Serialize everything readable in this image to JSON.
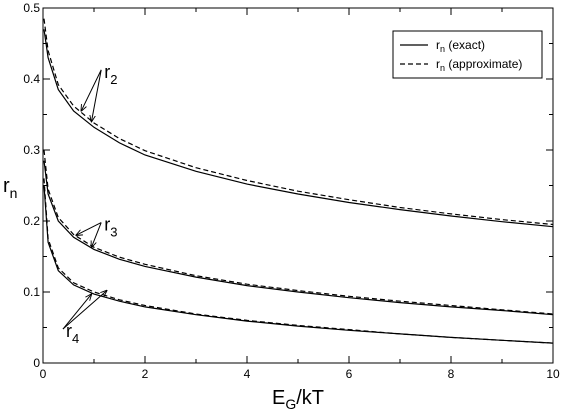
{
  "chart_data": {
    "type": "line",
    "title": "",
    "xlabel": {
      "main": "E",
      "sub": "G",
      "rest": "/kT"
    },
    "ylabel": {
      "main": "r",
      "sub": "n"
    },
    "xlim": [
      0,
      10
    ],
    "ylim": [
      0,
      0.5
    ],
    "x_ticks": [
      "0",
      "2",
      "4",
      "6",
      "8",
      "10"
    ],
    "y_ticks": [
      "0",
      "0.1",
      "0.2",
      "0.3",
      "0.4",
      "0.5"
    ],
    "legend": {
      "placement": "top-right",
      "entries": [
        {
          "main": "r",
          "sub": "n",
          "rest": " (exact)",
          "style": "solid"
        },
        {
          "main": "r",
          "sub": "n",
          "rest": " (approximate)",
          "style": "dashed"
        }
      ]
    },
    "series": [
      {
        "name": "r2 (exact)",
        "group": "r2",
        "style": "solid",
        "x": [
          0.02,
          0.1,
          0.3,
          0.6,
          1,
          1.5,
          2,
          3,
          4,
          5,
          6,
          7,
          8,
          9,
          10
        ],
        "y": [
          0.47,
          0.43,
          0.385,
          0.355,
          0.332,
          0.31,
          0.293,
          0.27,
          0.252,
          0.238,
          0.226,
          0.216,
          0.207,
          0.199,
          0.192
        ]
      },
      {
        "name": "r2 (approximate)",
        "group": "r2",
        "style": "dashed",
        "x": [
          0.02,
          0.1,
          0.3,
          0.6,
          1,
          1.5,
          2,
          3,
          4,
          5,
          6,
          7,
          8,
          9,
          10
        ],
        "y": [
          0.485,
          0.44,
          0.392,
          0.362,
          0.338,
          0.316,
          0.299,
          0.275,
          0.257,
          0.242,
          0.23,
          0.219,
          0.21,
          0.202,
          0.195
        ]
      },
      {
        "name": "r3 (exact)",
        "group": "r3",
        "style": "solid",
        "x": [
          0.02,
          0.1,
          0.3,
          0.6,
          1,
          1.5,
          2,
          3,
          4,
          5,
          6,
          7,
          8,
          9,
          10
        ],
        "y": [
          0.285,
          0.238,
          0.2,
          0.177,
          0.16,
          0.146,
          0.136,
          0.121,
          0.109,
          0.1,
          0.092,
          0.085,
          0.079,
          0.074,
          0.068
        ]
      },
      {
        "name": "r3 (approximate)",
        "group": "r3",
        "style": "dashed",
        "x": [
          0.02,
          0.1,
          0.3,
          0.6,
          1,
          1.5,
          2,
          3,
          4,
          5,
          6,
          7,
          8,
          9,
          10
        ],
        "y": [
          0.3,
          0.245,
          0.205,
          0.181,
          0.163,
          0.149,
          0.139,
          0.123,
          0.111,
          0.102,
          0.094,
          0.087,
          0.081,
          0.075,
          0.069
        ]
      },
      {
        "name": "r4 (exact)",
        "group": "r4",
        "style": "solid",
        "x": [
          0.02,
          0.1,
          0.3,
          0.6,
          1,
          1.5,
          2,
          3,
          4,
          5,
          6,
          7,
          8,
          9,
          10
        ],
        "y": [
          0.25,
          0.17,
          0.13,
          0.11,
          0.097,
          0.087,
          0.079,
          0.068,
          0.059,
          0.052,
          0.046,
          0.041,
          0.036,
          0.032,
          0.028
        ]
      },
      {
        "name": "r4 (approximate)",
        "group": "r4",
        "style": "dashed",
        "x": [
          0.02,
          0.1,
          0.3,
          0.6,
          1,
          1.5,
          2,
          3,
          4,
          5,
          6,
          7,
          8,
          9,
          10
        ],
        "y": [
          0.26,
          0.175,
          0.134,
          0.113,
          0.1,
          0.089,
          0.081,
          0.069,
          0.06,
          0.053,
          0.047,
          0.041,
          0.036,
          0.032,
          0.028
        ]
      }
    ],
    "annotations": [
      {
        "main": "r",
        "sub": "2",
        "pos": [
          1.2,
          0.41
        ],
        "arrows": [
          [
            0.75,
            0.355
          ],
          [
            0.95,
            0.34
          ]
        ]
      },
      {
        "main": "r",
        "sub": "3",
        "pos": [
          1.2,
          0.195
        ],
        "arrows": [
          [
            0.65,
            0.18
          ],
          [
            0.95,
            0.163
          ]
        ]
      },
      {
        "main": "r",
        "sub": "4",
        "pos": [
          0.45,
          0.045
        ],
        "arrows": [
          [
            0.95,
            0.097
          ],
          [
            1.25,
            0.102
          ]
        ]
      }
    ]
  }
}
